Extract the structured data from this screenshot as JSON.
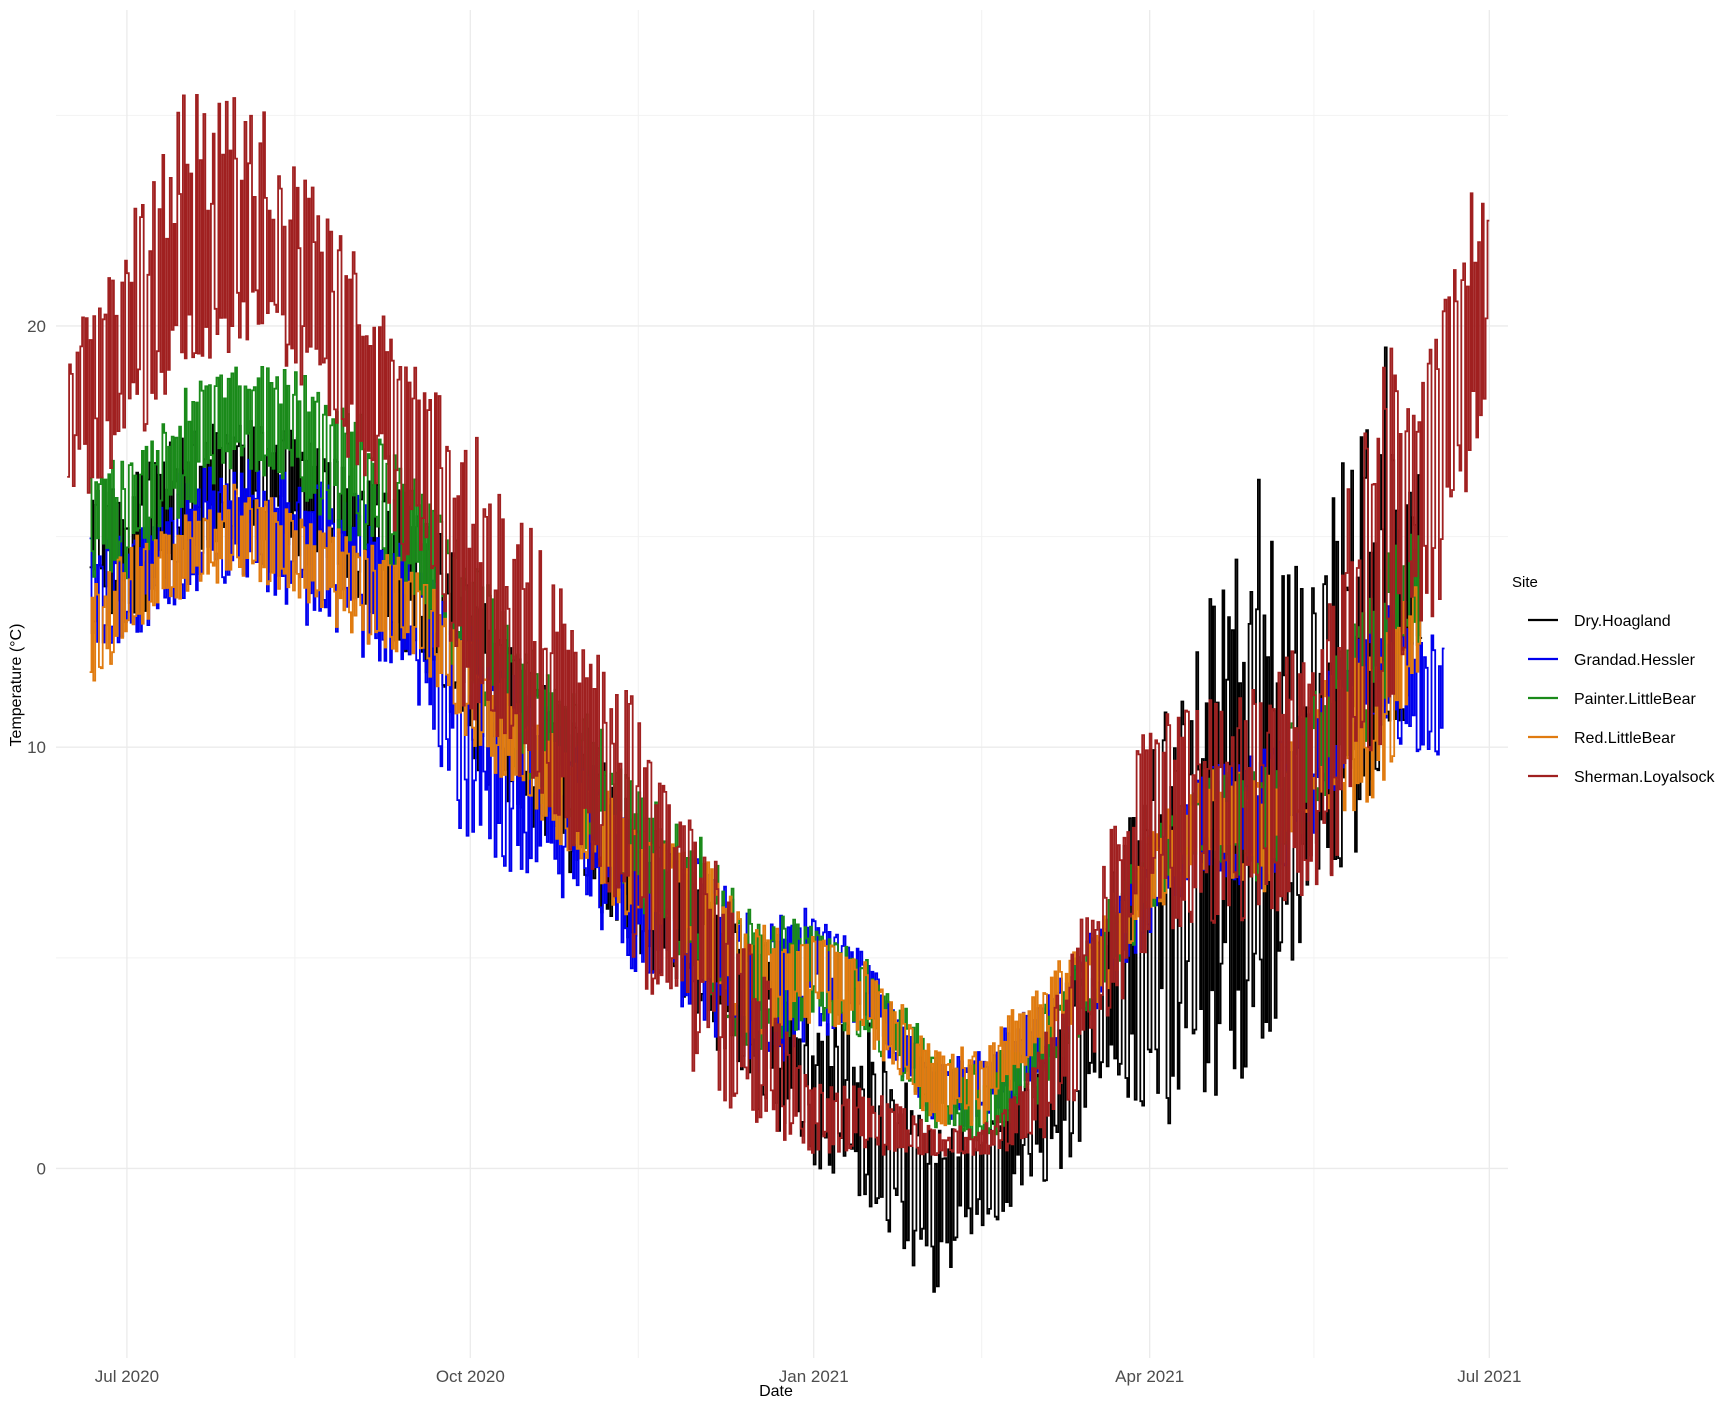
{
  "chart_data": {
    "type": "line",
    "xlabel": "Date",
    "ylabel": "Temperature (°C)",
    "x_range": [
      "2020-06-12",
      "2021-07-06"
    ],
    "ylim": [
      -4.5,
      27.5
    ],
    "x_ticks": [
      {
        "date": "2020-07-01",
        "label": "Jul 2020"
      },
      {
        "date": "2020-10-01",
        "label": "Oct 2020"
      },
      {
        "date": "2021-01-01",
        "label": "Jan 2021"
      },
      {
        "date": "2021-04-01",
        "label": "Apr 2021"
      },
      {
        "date": "2021-07-01",
        "label": "Jul 2021"
      }
    ],
    "x_minor_ticks": [
      "2020-08-15",
      "2020-11-15",
      "2021-02-15",
      "2021-05-15"
    ],
    "y_ticks": [
      0,
      10,
      20
    ],
    "y_minor_ticks": [
      5,
      15,
      25
    ],
    "grid": true,
    "legend_title": "Site",
    "legend_position": "right",
    "series": [
      {
        "name": "Dry.Hoagland",
        "color": "#000000",
        "x": [
          "2020-06-21",
          "2020-07-01",
          "2020-07-15",
          "2020-08-01",
          "2020-08-15",
          "2020-09-01",
          "2020-09-15",
          "2020-10-01",
          "2020-10-15",
          "2020-11-01",
          "2020-11-15",
          "2020-12-01",
          "2020-12-15",
          "2021-01-01",
          "2021-01-15",
          "2021-02-01",
          "2021-02-15",
          "2021-03-01",
          "2021-03-15",
          "2021-04-01",
          "2021-04-15",
          "2021-05-01",
          "2021-05-15",
          "2021-06-01",
          "2021-06-12"
        ],
        "values": [
          15.5,
          14.5,
          16.0,
          16.8,
          16.5,
          15.5,
          14.5,
          12.0,
          10.5,
          9.0,
          7.0,
          5.5,
          4.0,
          2.0,
          1.0,
          -0.5,
          0.0,
          1.5,
          3.5,
          6.0,
          8.0,
          7.5,
          9.0,
          12.0,
          13.5
        ],
        "min": [
          13.0,
          12.5,
          14.5,
          15.0,
          14.5,
          13.5,
          12.0,
          9.5,
          8.0,
          6.5,
          5.0,
          3.5,
          1.5,
          0.0,
          -0.8,
          -3.2,
          -1.5,
          -0.5,
          0.5,
          0.5,
          1.5,
          2.5,
          6.5,
          8.0,
          11.5
        ],
        "max": [
          16.5,
          16.5,
          17.5,
          17.8,
          17.5,
          16.5,
          16.0,
          14.0,
          12.0,
          10.5,
          8.5,
          7.0,
          5.5,
          3.5,
          3.5,
          1.0,
          1.0,
          2.5,
          5.5,
          10.0,
          13.0,
          17.8,
          14.5,
          20.2,
          16.5
        ]
      },
      {
        "name": "Grandad.Hessler",
        "color": "#0000ee",
        "x": [
          "2020-06-21",
          "2020-07-01",
          "2020-07-15",
          "2020-08-01",
          "2020-08-15",
          "2020-09-01",
          "2020-09-15",
          "2020-10-01",
          "2020-10-15",
          "2020-11-01",
          "2020-11-15",
          "2020-12-01",
          "2020-12-15",
          "2021-01-01",
          "2021-01-15",
          "2021-02-01",
          "2021-02-15",
          "2021-03-01",
          "2021-03-15",
          "2021-04-01",
          "2021-04-15",
          "2021-05-01",
          "2021-05-15",
          "2021-06-01",
          "2021-06-18"
        ],
        "values": [
          13.5,
          14.0,
          15.0,
          15.5,
          15.0,
          14.5,
          13.5,
          11.0,
          9.5,
          8.5,
          6.5,
          6.0,
          4.5,
          5.5,
          4.5,
          2.0,
          2.0,
          3.0,
          4.5,
          6.5,
          8.5,
          8.0,
          10.0,
          12.0,
          11.0
        ],
        "min": [
          12.0,
          12.5,
          13.5,
          14.0,
          13.0,
          12.0,
          11.5,
          6.8,
          7.0,
          6.0,
          4.5,
          3.5,
          2.0,
          3.0,
          3.5,
          1.0,
          1.0,
          2.0,
          3.5,
          5.5,
          7.0,
          6.5,
          8.0,
          10.0,
          9.8
        ],
        "max": [
          15.0,
          15.0,
          16.5,
          17.0,
          16.5,
          16.0,
          15.0,
          13.0,
          11.5,
          10.0,
          8.0,
          7.5,
          6.0,
          6.3,
          5.0,
          2.5,
          3.0,
          4.0,
          5.5,
          7.5,
          9.5,
          10.0,
          11.5,
          13.5,
          12.5
        ]
      },
      {
        "name": "Painter.LittleBear",
        "color": "#1a8a1a",
        "x": [
          "2020-06-21",
          "2020-07-01",
          "2020-07-15",
          "2020-08-01",
          "2020-08-15",
          "2020-09-01",
          "2020-09-15",
          "2020-10-01",
          "2020-10-15",
          "2020-11-01",
          "2020-11-15",
          "2020-12-01",
          "2020-12-15",
          "2021-01-01",
          "2021-01-15",
          "2021-02-01",
          "2021-02-15",
          "2021-03-01",
          "2021-03-15",
          "2021-04-01",
          "2021-04-15",
          "2021-05-01",
          "2021-05-15",
          "2021-06-01",
          "2021-06-12"
        ],
        "values": [
          15.5,
          15.5,
          17.0,
          18.0,
          17.5,
          16.5,
          15.5,
          13.0,
          11.0,
          9.5,
          7.5,
          6.0,
          4.5,
          5.0,
          4.0,
          2.0,
          1.5,
          2.5,
          4.5,
          7.0,
          8.5,
          8.0,
          10.0,
          12.5,
          14.5
        ],
        "min": [
          14.0,
          14.0,
          15.5,
          16.5,
          16.0,
          14.5,
          13.5,
          11.0,
          9.0,
          7.5,
          6.0,
          4.5,
          2.5,
          3.5,
          3.0,
          1.0,
          0.5,
          1.5,
          3.5,
          6.0,
          7.5,
          6.5,
          8.5,
          10.5,
          12.5
        ],
        "max": [
          16.5,
          17.0,
          18.5,
          19.2,
          19.0,
          18.0,
          16.5,
          14.5,
          12.5,
          11.0,
          9.0,
          8.0,
          6.0,
          6.0,
          5.0,
          3.0,
          2.5,
          3.5,
          5.5,
          8.0,
          9.5,
          9.5,
          11.5,
          14.5,
          15.5
        ]
      },
      {
        "name": "Red.LittleBear",
        "color": "#e07b10",
        "x": [
          "2020-06-21",
          "2020-07-01",
          "2020-07-15",
          "2020-08-01",
          "2020-08-15",
          "2020-09-01",
          "2020-09-15",
          "2020-10-01",
          "2020-10-15",
          "2020-11-01",
          "2020-11-15",
          "2020-12-01",
          "2020-12-15",
          "2021-01-01",
          "2021-01-15",
          "2021-02-01",
          "2021-02-15",
          "2021-03-01",
          "2021-03-15",
          "2021-04-01",
          "2021-04-15",
          "2021-05-01",
          "2021-05-15",
          "2021-06-01",
          "2021-06-12"
        ],
        "values": [
          12.5,
          13.5,
          14.5,
          15.0,
          14.5,
          14.0,
          13.5,
          11.5,
          10.0,
          8.5,
          7.0,
          6.0,
          4.5,
          5.0,
          4.0,
          2.0,
          2.0,
          3.5,
          4.5,
          7.0,
          8.5,
          8.0,
          10.0,
          11.5,
          13.0
        ],
        "min": [
          11.3,
          12.5,
          13.5,
          14.0,
          13.5,
          12.5,
          12.0,
          10.0,
          8.5,
          7.0,
          5.5,
          4.5,
          3.0,
          3.5,
          3.0,
          1.0,
          1.0,
          2.5,
          3.5,
          6.0,
          7.0,
          6.5,
          8.5,
          8.5,
          12.0
        ],
        "max": [
          13.8,
          15.0,
          15.5,
          16.5,
          15.5,
          15.0,
          14.5,
          12.5,
          11.0,
          9.5,
          8.0,
          7.5,
          6.0,
          5.5,
          5.0,
          3.0,
          3.0,
          4.5,
          5.5,
          8.0,
          9.5,
          9.5,
          11.5,
          12.5,
          14.0
        ]
      },
      {
        "name": "Sherman.Loyalsock",
        "color": "#a02020",
        "x": [
          "2020-06-15",
          "2020-07-01",
          "2020-07-15",
          "2020-08-01",
          "2020-08-15",
          "2020-09-01",
          "2020-09-15",
          "2020-10-01",
          "2020-10-15",
          "2020-11-01",
          "2020-11-15",
          "2020-12-01",
          "2020-12-15",
          "2021-01-01",
          "2021-01-15",
          "2021-02-01",
          "2021-02-15",
          "2021-03-01",
          "2021-03-15",
          "2021-04-01",
          "2021-04-15",
          "2021-05-01",
          "2021-05-15",
          "2021-06-01",
          "2021-06-15",
          "2021-06-30"
        ],
        "values": [
          18.0,
          19.5,
          21.0,
          22.0,
          21.0,
          19.0,
          17.5,
          13.0,
          11.5,
          10.0,
          7.5,
          6.0,
          3.0,
          1.5,
          1.0,
          0.5,
          0.5,
          1.5,
          4.5,
          8.5,
          8.5,
          8.5,
          9.5,
          14.0,
          17.0,
          21.5
        ],
        "min": [
          15.5,
          17.0,
          18.5,
          19.5,
          18.5,
          16.5,
          14.0,
          10.0,
          8.5,
          7.0,
          4.5,
          2.0,
          1.0,
          0.3,
          0.3,
          0.3,
          0.3,
          0.5,
          2.0,
          5.5,
          5.5,
          6.0,
          6.0,
          10.0,
          12.5,
          18.0
        ],
        "max": [
          19.5,
          22.5,
          25.5,
          26.0,
          24.0,
          21.5,
          19.5,
          17.5,
          16.0,
          12.5,
          11.0,
          8.0,
          5.5,
          2.0,
          2.0,
          1.0,
          1.0,
          2.5,
          6.5,
          11.0,
          11.0,
          12.0,
          12.5,
          19.5,
          20.0,
          24.5
        ]
      }
    ]
  }
}
